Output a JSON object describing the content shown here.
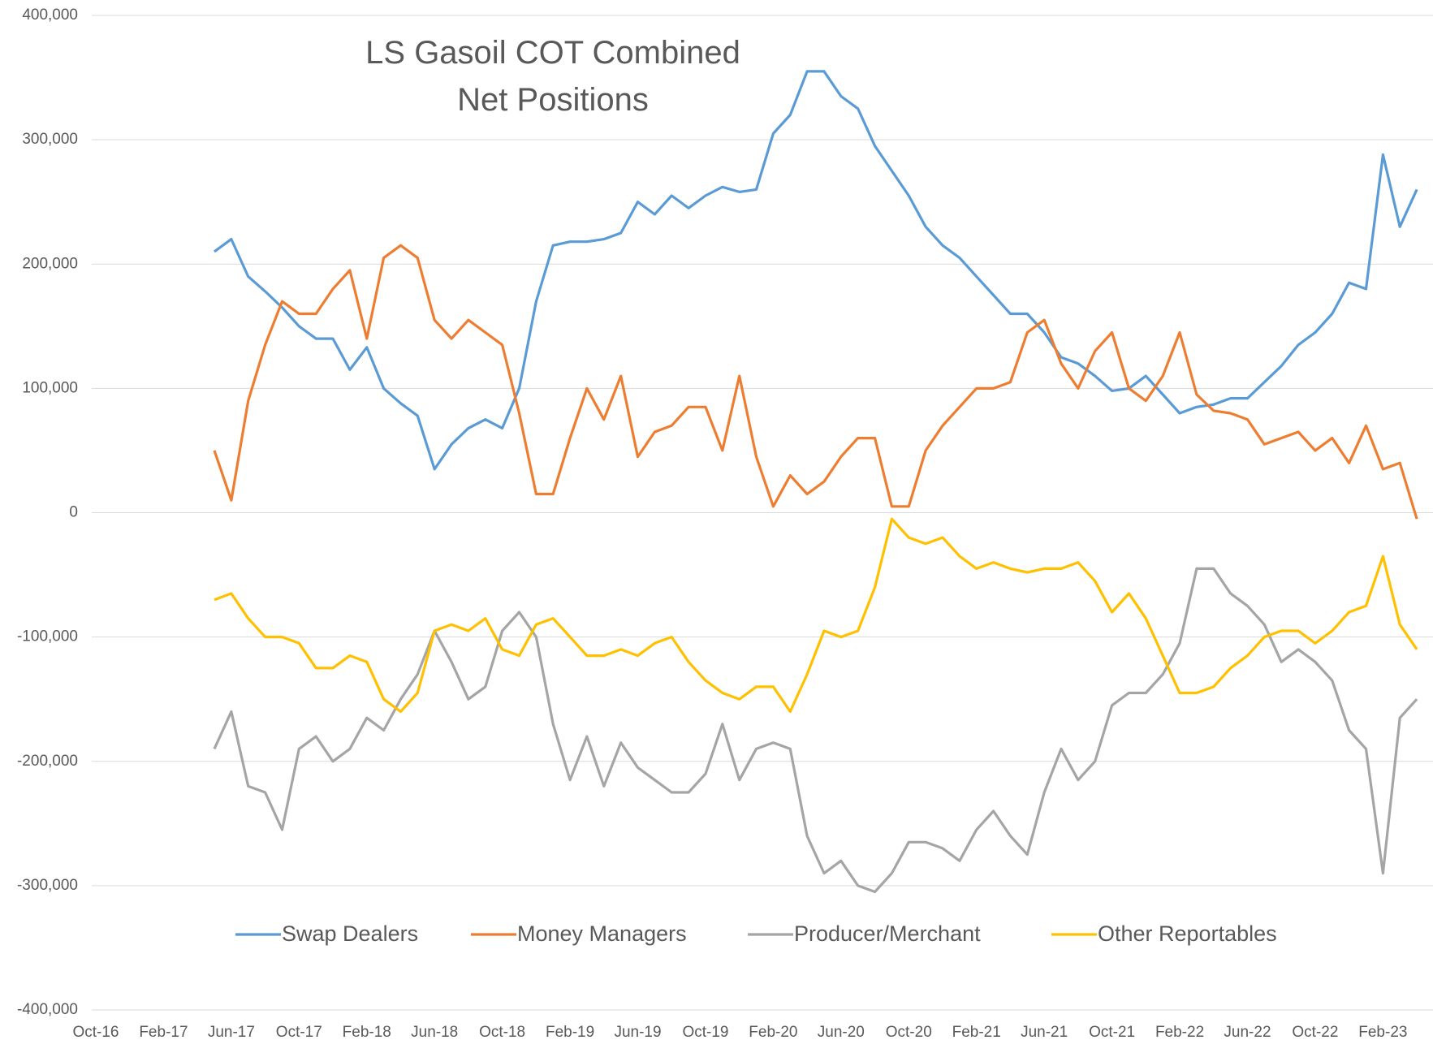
{
  "chart_data": {
    "type": "line",
    "title": "LS Gasoil COT Combined Net Positions",
    "categories": [
      "Oct-16",
      null,
      null,
      null,
      "Feb-17",
      null,
      null,
      null,
      "Jun-17",
      null,
      null,
      null,
      "Oct-17",
      null,
      null,
      null,
      "Feb-18",
      null,
      null,
      null,
      "Jun-18",
      null,
      null,
      null,
      "Oct-18",
      null,
      null,
      null,
      "Feb-19",
      null,
      null,
      null,
      "Jun-19",
      null,
      null,
      null,
      "Oct-19",
      null,
      null,
      null,
      "Feb-20",
      null,
      null,
      null,
      "Jun-20",
      null,
      null,
      null,
      "Oct-20",
      null,
      null,
      null,
      "Feb-21",
      null,
      null,
      null,
      "Jun-21",
      null,
      null,
      null,
      "Oct-21",
      null,
      null,
      null,
      "Feb-22",
      null,
      null,
      null,
      "Jun-22",
      null,
      null,
      null,
      "Oct-22",
      null,
      null,
      null,
      "Feb-23",
      null,
      null
    ],
    "ylim": [
      -400000,
      400000
    ],
    "yticks": [
      {
        "value": -400000,
        "label": "-400,000"
      },
      {
        "value": -300000,
        "label": "-300,000"
      },
      {
        "value": -200000,
        "label": "-200,000"
      },
      {
        "value": -100000,
        "label": "-100,000"
      },
      0,
      {
        "value": 100000,
        "label": "100,000"
      },
      {
        "value": 200000,
        "label": "200,000"
      },
      {
        "value": 300000,
        "label": "300,000"
      },
      {
        "value": 400000,
        "label": "400,000"
      }
    ],
    "grid": true,
    "legend": "bottom",
    "series": [
      {
        "name": "Swap Dealers",
        "color": "#5b9bd5",
        "values": [
          null,
          null,
          null,
          null,
          null,
          null,
          null,
          210000,
          220000,
          190000,
          178000,
          165000,
          150000,
          140000,
          140000,
          115000,
          133000,
          100000,
          88000,
          78000,
          35000,
          55000,
          68000,
          75000,
          68000,
          100000,
          170000,
          215000,
          218000,
          218000,
          220000,
          225000,
          250000,
          240000,
          255000,
          245000,
          255000,
          262000,
          258000,
          260000,
          305000,
          320000,
          355000,
          355000,
          335000,
          325000,
          295000,
          275000,
          255000,
          230000,
          215000,
          205000,
          190000,
          175000,
          160000,
          160000,
          145000,
          125000,
          120000,
          110000,
          98000,
          100000,
          110000,
          95000,
          80000,
          85000,
          87000,
          92000,
          92000,
          105000,
          118000,
          135000,
          145000,
          160000,
          185000,
          180000,
          288000,
          230000,
          260000
        ]
      },
      {
        "name": "Money Managers",
        "color": "#ed7d31",
        "values": [
          null,
          null,
          null,
          null,
          null,
          null,
          null,
          50000,
          10000,
          90000,
          135000,
          170000,
          160000,
          160000,
          180000,
          195000,
          140000,
          205000,
          215000,
          205000,
          155000,
          140000,
          155000,
          145000,
          135000,
          80000,
          15000,
          15000,
          60000,
          100000,
          75000,
          110000,
          45000,
          65000,
          70000,
          85000,
          85000,
          50000,
          110000,
          45000,
          5000,
          30000,
          15000,
          25000,
          45000,
          60000,
          60000,
          5000,
          5000,
          50000,
          70000,
          85000,
          100000,
          100000,
          105000,
          145000,
          155000,
          120000,
          100000,
          130000,
          145000,
          100000,
          90000,
          110000,
          145000,
          95000,
          82000,
          80000,
          75000,
          55000,
          60000,
          65000,
          50000,
          60000,
          40000,
          70000,
          35000,
          40000,
          -5000
        ]
      },
      {
        "name": "Producer/Merchant",
        "color": "#a5a5a5",
        "values": [
          null,
          null,
          null,
          null,
          null,
          null,
          null,
          -190000,
          -160000,
          -220000,
          -225000,
          -255000,
          -190000,
          -180000,
          -200000,
          -190000,
          -165000,
          -175000,
          -150000,
          -130000,
          -95000,
          -120000,
          -150000,
          -140000,
          -95000,
          -80000,
          -100000,
          -170000,
          -215000,
          -180000,
          -220000,
          -185000,
          -205000,
          -215000,
          -225000,
          -225000,
          -210000,
          -170000,
          -215000,
          -190000,
          -185000,
          -190000,
          -260000,
          -290000,
          -280000,
          -300000,
          -305000,
          -290000,
          -265000,
          -265000,
          -270000,
          -280000,
          -255000,
          -240000,
          -260000,
          -275000,
          -225000,
          -190000,
          -215000,
          -200000,
          -155000,
          -145000,
          -145000,
          -130000,
          -105000,
          -45000,
          -45000,
          -65000,
          -75000,
          -90000,
          -120000,
          -110000,
          -120000,
          -135000,
          -175000,
          -190000,
          -290000,
          -165000,
          -150000
        ]
      },
      {
        "name": "Other Reportables",
        "color": "#ffc000",
        "values": [
          null,
          null,
          null,
          null,
          null,
          null,
          null,
          -70000,
          -65000,
          -85000,
          -100000,
          -100000,
          -105000,
          -125000,
          -125000,
          -115000,
          -120000,
          -150000,
          -160000,
          -145000,
          -95000,
          -90000,
          -95000,
          -85000,
          -110000,
          -115000,
          -90000,
          -85000,
          -100000,
          -115000,
          -115000,
          -110000,
          -115000,
          -105000,
          -100000,
          -120000,
          -135000,
          -145000,
          -150000,
          -140000,
          -140000,
          -160000,
          -130000,
          -95000,
          -100000,
          -95000,
          -60000,
          -5000,
          -20000,
          -25000,
          -20000,
          -35000,
          -45000,
          -40000,
          -45000,
          -48000,
          -45000,
          -45000,
          -40000,
          -55000,
          -80000,
          -65000,
          -85000,
          -115000,
          -145000,
          -145000,
          -140000,
          -125000,
          -115000,
          -100000,
          -95000,
          -95000,
          -105000,
          -95000,
          -80000,
          -75000,
          -35000,
          -90000,
          -110000
        ]
      }
    ]
  }
}
